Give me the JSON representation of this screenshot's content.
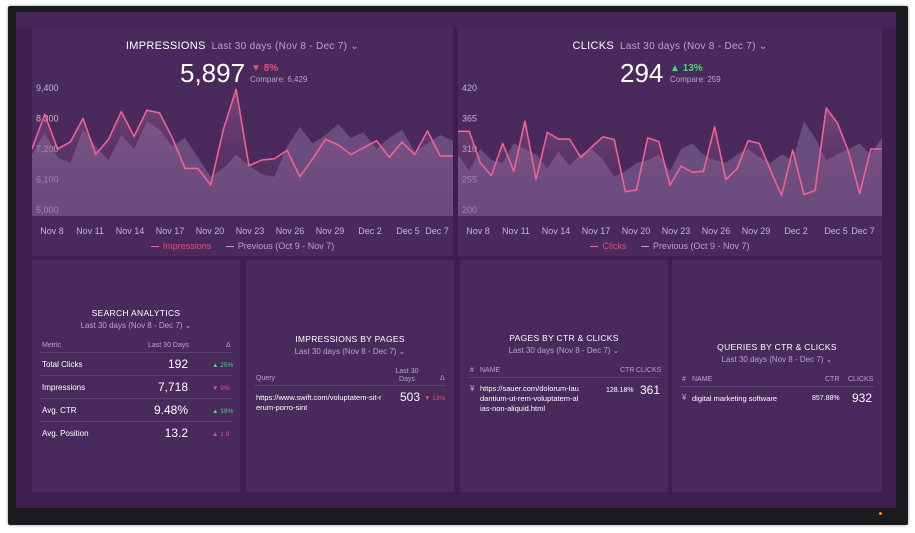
{
  "impressions": {
    "title": "IMPRESSIONS",
    "range": "Last 30 days (Nov 8 - Dec 7)",
    "value": "5,897",
    "delta": "8%",
    "delta_arrow": "▼",
    "compare": "Compare: 6,429",
    "legend_current": "Impressions",
    "legend_previous": "Previous (Oct 9 - Nov 7)"
  },
  "clicks": {
    "title": "CLICKS",
    "range": "Last 30 days (Nov 8 - Dec 7)",
    "value": "294",
    "delta": "13%",
    "delta_arrow": "▲",
    "compare": "Compare: 259",
    "legend_current": "Clicks",
    "legend_previous": "Previous (Oct 9 - Nov 7)"
  },
  "search_analytics": {
    "title": "SEARCH ANALYTICS",
    "range": "Last 30 days (Nov 8 - Dec 7)",
    "col_metric": "Metric",
    "col_last": "Last 30 Days",
    "col_delta": "Δ",
    "rows": [
      {
        "metric": "Total Clicks",
        "value": "192",
        "delta": "▲ 25%",
        "dir": "up"
      },
      {
        "metric": "Impressions",
        "value": "7,718",
        "delta": "▼ 9%",
        "dir": "down"
      },
      {
        "metric": "Avg. CTR",
        "value": "9.48%",
        "delta": "▲ 19%",
        "dir": "up"
      },
      {
        "metric": "Avg. Position",
        "value": "13.2",
        "delta": "▲ 1.9",
        "dir": "down"
      }
    ]
  },
  "impressions_by_pages": {
    "title": "IMPRESSIONS BY PAGES",
    "range": "Last 30 days (Nov 8 - Dec 7)",
    "col_query": "Query",
    "col_last": "Last 30 Days",
    "col_delta": "Δ",
    "row": {
      "url": "https://www.swift.com/voluptatem-sit-rerum-porro-sint",
      "value": "503",
      "delta": "▼ 13%"
    }
  },
  "pages_by_ctr": {
    "title": "PAGES BY CTR & CLICKS",
    "range": "Last 30 days (Nov 8 - Dec 7)",
    "col_hash": "#",
    "col_name": "NAME",
    "col_ctr": "CTR",
    "col_clicks": "CLICKS",
    "row": {
      "url": "https://sauer.com/dolorum-laudantium-ut-rem-voluptatem-alias-non-aliquid.html",
      "ctr": "128.18%",
      "clicks": "361"
    }
  },
  "queries_by_ctr": {
    "title": "QUERIES BY CTR & CLICKS",
    "range": "Last 30 days (Nov 8 - Dec 7)",
    "col_hash": "#",
    "col_name": "NAME",
    "col_ctr": "CTR",
    "col_clicks": "CLICKS",
    "row": {
      "name": "digital marketing software",
      "ctr": "857.88%",
      "clicks": "932"
    }
  },
  "colors": {
    "current_line": "#f06292",
    "previous_area": "#8a6a9a",
    "up": "#4ed37c",
    "down": "#e0507a"
  },
  "chart_data": [
    {
      "type": "line",
      "title": "IMPRESSIONS",
      "x_ticks": [
        "Nov 8",
        "Nov 11",
        "Nov 14",
        "Nov 17",
        "Nov 20",
        "Nov 23",
        "Nov 26",
        "Nov 29",
        "Dec 2",
        "Dec 5",
        "Dec 7"
      ],
      "y_ticks": [
        "5,000",
        "6,100",
        "7,200",
        "8,300",
        "9,400"
      ],
      "ylim": [
        5000,
        9400
      ],
      "series": [
        {
          "name": "Impressions",
          "values": [
            7200,
            8450,
            7200,
            7450,
            8300,
            7000,
            7550,
            8550,
            7650,
            8600,
            8500,
            7600,
            6500,
            6500,
            5900,
            7900,
            9350,
            6600,
            6800,
            6850,
            7150,
            6200,
            6850,
            7550,
            7350,
            7000,
            7250,
            7500,
            6900,
            7450,
            7000,
            7850,
            6950,
            6950
          ]
        },
        {
          "name": "Previous (Oct 9 - Nov 7)",
          "values": [
            7000,
            7800,
            6900,
            6700,
            7900,
            7300,
            6800,
            7700,
            7200,
            8200,
            7900,
            7300,
            7600,
            6900,
            6200,
            6500,
            7000,
            6600,
            6300,
            6200,
            7300,
            8000,
            7400,
            7700,
            8100,
            7600,
            7800,
            7200,
            7600,
            7900,
            7100,
            7400,
            7700,
            7500
          ]
        }
      ]
    },
    {
      "type": "line",
      "title": "CLICKS",
      "x_ticks": [
        "Nov 8",
        "Nov 11",
        "Nov 14",
        "Nov 17",
        "Nov 20",
        "Nov 23",
        "Nov 26",
        "Nov 29",
        "Dec 2",
        "Dec 5",
        "Dec 7"
      ],
      "y_ticks": [
        "200",
        "255",
        "310",
        "365",
        "420"
      ],
      "ylim": [
        200,
        420
      ],
      "series": [
        {
          "name": "Clicks",
          "values": [
            342,
            342,
            285,
            262,
            320,
            270,
            360,
            255,
            340,
            328,
            328,
            295,
            314,
            332,
            327,
            233,
            236,
            330,
            323,
            245,
            279,
            268,
            270,
            350,
            255,
            274,
            325,
            320,
            272,
            226,
            308,
            228,
            235,
            384,
            357,
            305,
            230,
            310,
            310
          ]
        },
        {
          "name": "Previous (Oct 9 - Nov 7)",
          "values": [
            300,
            270,
            310,
            290,
            285,
            320,
            310,
            300,
            275,
            305,
            280,
            300,
            310,
            290,
            260,
            270,
            285,
            290,
            300,
            270,
            310,
            320,
            300,
            290,
            285,
            300,
            310,
            295,
            285,
            300,
            290,
            360,
            330,
            290,
            300,
            310,
            320,
            300,
            330
          ]
        }
      ]
    }
  ]
}
